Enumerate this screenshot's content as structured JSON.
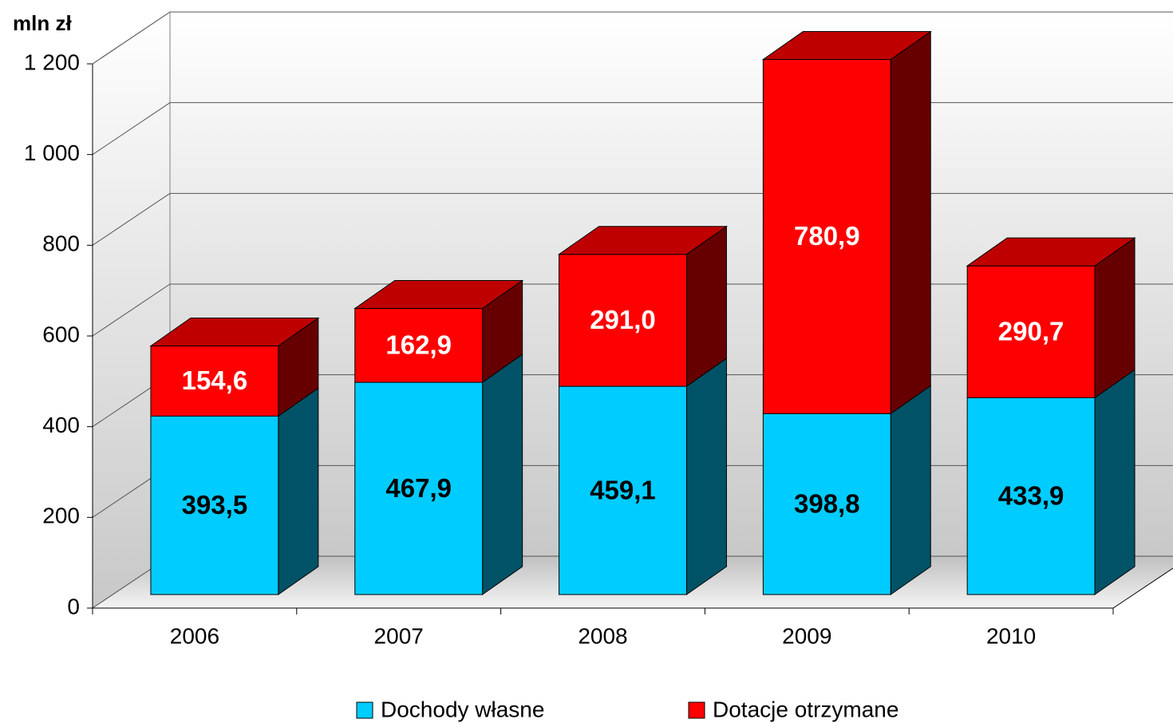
{
  "chart_data": {
    "type": "bar3d_stacked",
    "y_label": "mln zł",
    "categories": [
      "2006",
      "2007",
      "2008",
      "2009",
      "2010"
    ],
    "series": [
      {
        "name": "Dochody własne",
        "color": "#00ccff",
        "values": [
          393.5,
          467.9,
          459.1,
          398.8,
          433.9
        ],
        "value_labels": [
          "393,5",
          "467,9",
          "459,1",
          "398,8",
          "433,9"
        ]
      },
      {
        "name": "Dotacje otrzymane",
        "color": "#ff0000",
        "values": [
          154.6,
          162.9,
          291.0,
          780.9,
          290.7
        ],
        "value_labels": [
          "154,6",
          "162,9",
          "291,0",
          "780,9",
          "290,7"
        ]
      }
    ],
    "ylim": [
      0,
      1200
    ],
    "yticks": [
      0,
      200,
      400,
      600,
      800,
      {
        "value": 1000,
        "label": "1 000"
      },
      {
        "value": 1200,
        "label": "1 200"
      }
    ],
    "grid": true
  }
}
